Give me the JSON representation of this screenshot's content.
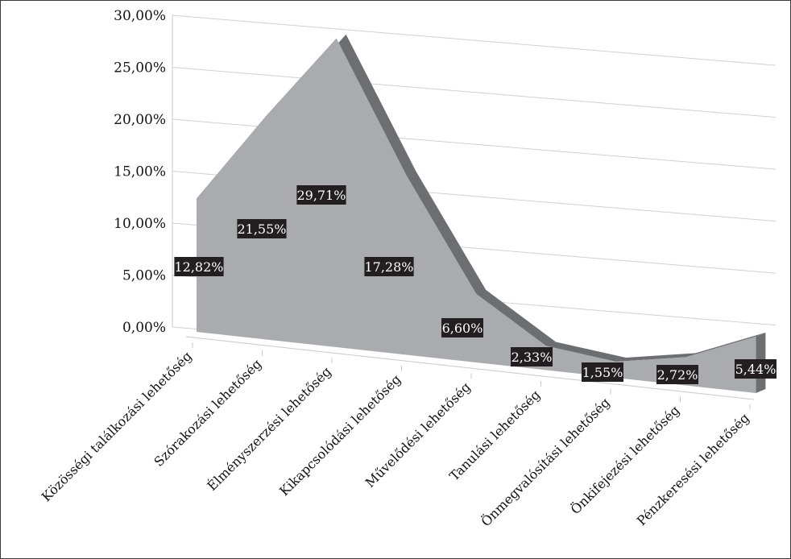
{
  "chart_data": {
    "type": "area",
    "title": "",
    "xlabel": "",
    "ylabel": "",
    "ylim": [
      0,
      30
    ],
    "y_ticks": [
      "0,00%",
      "5,00%",
      "10,00%",
      "15,00%",
      "20,00%",
      "25,00%",
      "30,00%"
    ],
    "grid": true,
    "legend": "none",
    "three_d": true,
    "categories": [
      "Közösségi találkozási lehetőség",
      "Szórakozási lehetőség",
      "Élményszerzési lehetőség",
      "Kikapcsolódási lehetőség",
      "Művelődési lehetőség",
      "Tanulási lehetőség",
      "Önmegvalósítási lehetőség",
      "Önkifejezési lehetőség",
      "Pénzkeresési lehetőség"
    ],
    "values": [
      12.82,
      21.55,
      29.71,
      17.28,
      6.6,
      2.33,
      1.55,
      2.72,
      5.44
    ],
    "data_labels": [
      "12,82%",
      "21,55%",
      "29,71%",
      "17,28%",
      "6,60%",
      "2,33%",
      "1,55%",
      "2,72%",
      "5,44%"
    ],
    "colors": {
      "area_front": "#a9abae",
      "area_top": "#6d6e71",
      "label_bg": "#231f20",
      "grid": "#d0d0d0"
    }
  }
}
